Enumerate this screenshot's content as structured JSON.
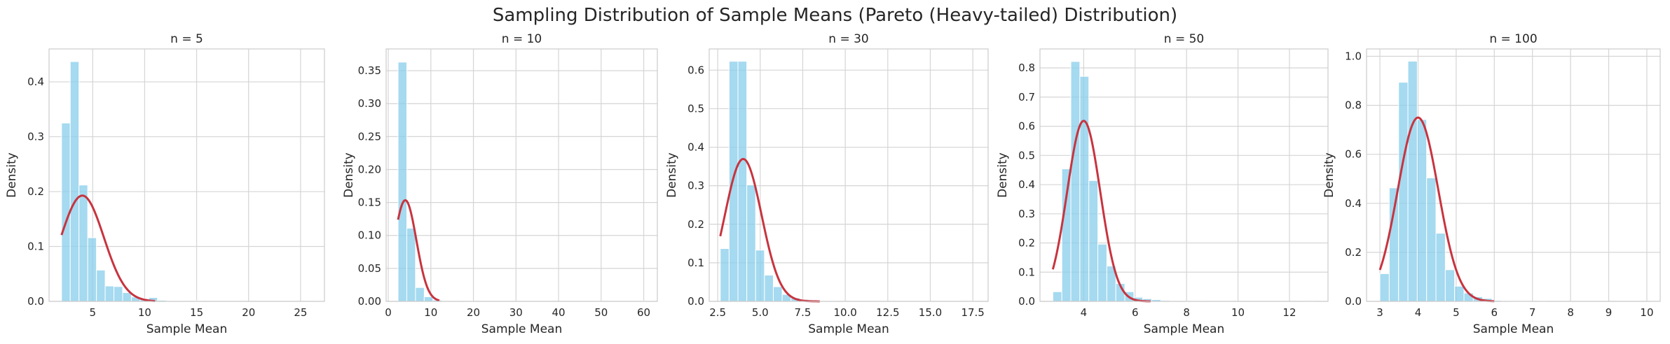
{
  "figure": {
    "title": "Sampling Distribution of Sample Means (Pareto (Heavy-tailed) Distribution)"
  },
  "colors": {
    "bar": "#87ceeb",
    "curve": "#c7343f",
    "grid": "#d5d5d5"
  },
  "chart_data": [
    {
      "type": "bar",
      "title": "n = 5",
      "xlabel": "Sample Mean",
      "ylabel": "Density",
      "xlim": [
        0.8,
        27.3
      ],
      "ylim": [
        0,
        0.46
      ],
      "xticks": [
        5,
        10,
        15,
        20,
        25
      ],
      "xtick_labels": [
        "5",
        "10",
        "15",
        "20",
        "25"
      ],
      "yticks": [
        0,
        0.1,
        0.2,
        0.3,
        0.4
      ],
      "ytick_labels": [
        "0.0",
        "0.1",
        "0.2",
        "0.3",
        "0.4"
      ],
      "bin_start": 2.0,
      "bin_width": 0.84,
      "densities": [
        0.325,
        0.437,
        0.212,
        0.116,
        0.057,
        0.028,
        0.027,
        0.016,
        0.008,
        0.005,
        0.007,
        0.002,
        0.001,
        0.001,
        0,
        0.001,
        0,
        0,
        0,
        0,
        0,
        0,
        0,
        0,
        0,
        0,
        0,
        0,
        0,
        0.001
      ],
      "normal_fit": {
        "mean": 4.0,
        "std": 2.07,
        "range": [
          2.0,
          11.0
        ]
      },
      "grid": true
    },
    {
      "type": "bar",
      "title": "n = 10",
      "xlabel": "Sample Mean",
      "ylabel": "Density",
      "xlim": [
        -0.5,
        63.2
      ],
      "ylim": [
        0,
        0.383
      ],
      "xticks": [
        0,
        10,
        20,
        30,
        40,
        50,
        60
      ],
      "xtick_labels": [
        "0",
        "10",
        "20",
        "30",
        "40",
        "50",
        "60"
      ],
      "yticks": [
        0,
        0.05,
        0.1,
        0.15,
        0.2,
        0.25,
        0.3,
        0.35
      ],
      "ytick_labels": [
        "0.00",
        "0.05",
        "0.10",
        "0.15",
        "0.20",
        "0.25",
        "0.30",
        "0.35"
      ],
      "bin_start": 2.3,
      "bin_width": 2.05,
      "densities": [
        0.363,
        0.111,
        0.021,
        0.007,
        0.002,
        0.001,
        0.001,
        0,
        0,
        0,
        0,
        0,
        0,
        0,
        0,
        0,
        0,
        0,
        0,
        0,
        0,
        0,
        0,
        0,
        0,
        0,
        0,
        0,
        0.0005
      ],
      "normal_fit": {
        "mean": 4.0,
        "std": 2.6,
        "range": [
          2.3,
          12.0
        ]
      },
      "grid": true
    },
    {
      "type": "bar",
      "title": "n = 30",
      "xlabel": "Sample Mean",
      "ylabel": "Density",
      "xlim": [
        2.0,
        18.4
      ],
      "ylim": [
        0,
        0.655
      ],
      "xticks": [
        2.5,
        5.0,
        7.5,
        10.0,
        12.5,
        15.0,
        17.5
      ],
      "xtick_labels": [
        "2.5",
        "5.0",
        "7.5",
        "10.0",
        "12.5",
        "15.0",
        "17.5"
      ],
      "yticks": [
        0,
        0.1,
        0.2,
        0.3,
        0.4,
        0.5,
        0.6
      ],
      "ytick_labels": [
        "0.0",
        "0.1",
        "0.2",
        "0.3",
        "0.4",
        "0.5",
        "0.6"
      ],
      "bin_start": 2.65,
      "bin_width": 0.52,
      "densities": [
        0.137,
        0.623,
        0.623,
        0.302,
        0.133,
        0.068,
        0.038,
        0.018,
        0.009,
        0.005,
        0.003,
        0.001,
        0.001,
        0,
        0,
        0,
        0,
        0,
        0,
        0,
        0,
        0,
        0,
        0,
        0,
        0,
        0,
        0,
        0.0005
      ],
      "normal_fit": {
        "mean": 4.0,
        "std": 1.08,
        "range": [
          2.65,
          8.5
        ]
      },
      "grid": true
    },
    {
      "type": "bar",
      "title": "n = 50",
      "xlabel": "Sample Mean",
      "ylabel": "Density",
      "xlim": [
        2.3,
        13.5
      ],
      "ylim": [
        0,
        0.865
      ],
      "xticks": [
        4,
        6,
        8,
        10,
        12
      ],
      "xtick_labels": [
        "4",
        "6",
        "8",
        "10",
        "12"
      ],
      "yticks": [
        0,
        0.1,
        0.2,
        0.3,
        0.4,
        0.5,
        0.6,
        0.7,
        0.8
      ],
      "ytick_labels": [
        "0.0",
        "0.1",
        "0.2",
        "0.3",
        "0.4",
        "0.5",
        "0.6",
        "0.7",
        "0.8"
      ],
      "bin_start": 2.8,
      "bin_width": 0.35,
      "densities": [
        0.033,
        0.454,
        0.822,
        0.771,
        0.414,
        0.196,
        0.121,
        0.061,
        0.033,
        0.014,
        0.009,
        0.006,
        0.003,
        0.002,
        0.001,
        0.001,
        0.001,
        0,
        0,
        0,
        0,
        0,
        0,
        0,
        0,
        0,
        0,
        0,
        0.0005
      ],
      "normal_fit": {
        "mean": 4.0,
        "std": 0.645,
        "range": [
          2.8,
          6.6
        ]
      },
      "grid": true
    },
    {
      "type": "bar",
      "title": "n = 100",
      "xlabel": "Sample Mean",
      "ylabel": "Density",
      "xlim": [
        2.65,
        10.35
      ],
      "ylim": [
        0,
        1.03
      ],
      "xticks": [
        3,
        4,
        5,
        6,
        7,
        8,
        9,
        10
      ],
      "xtick_labels": [
        "3",
        "4",
        "5",
        "6",
        "7",
        "8",
        "9",
        "10"
      ],
      "yticks": [
        0,
        0.2,
        0.4,
        0.6,
        0.8,
        1.0
      ],
      "ytick_labels": [
        "0.0",
        "0.2",
        "0.4",
        "0.6",
        "0.8",
        "1.0"
      ],
      "bin_start": 3.0,
      "bin_width": 0.245,
      "densities": [
        0.113,
        0.463,
        0.894,
        0.98,
        0.742,
        0.504,
        0.278,
        0.129,
        0.062,
        0.034,
        0.019,
        0.012,
        0.004,
        0.002,
        0.001,
        0.001,
        0,
        0.001,
        0,
        0,
        0,
        0,
        0,
        0,
        0,
        0,
        0,
        0,
        0,
        0.0005
      ],
      "normal_fit": {
        "mean": 4.0,
        "std": 0.532,
        "range": [
          3.0,
          6.0
        ]
      },
      "grid": true
    }
  ]
}
